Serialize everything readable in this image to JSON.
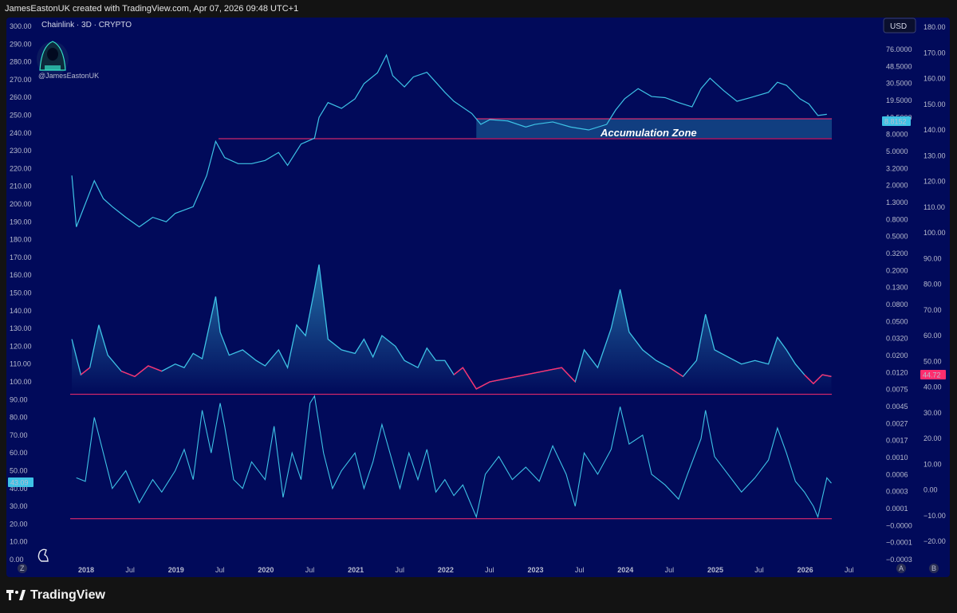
{
  "header": {
    "text": "JamesEastonUK created with TradingView.com, Apr 07, 2026 09:48 UTC+1"
  },
  "footer": {
    "brand": "TradingView"
  },
  "colors": {
    "background": "#010a5a",
    "line": "#3ec3e6",
    "negative": "#ff2d6e",
    "zone": "#1f6aa0"
  },
  "chart_data": {
    "type": "line",
    "title": "Chainlink · 3D · CRYPTO",
    "author": "@JamesEastonUK",
    "currency": "USD",
    "x_labels": [
      "2018",
      "Jul",
      "2019",
      "Jul",
      "2020",
      "Jul",
      "2021",
      "Jul",
      "2022",
      "Jul",
      "2023",
      "Jul",
      "2024",
      "Jul",
      "2025",
      "Jul",
      "2026",
      "Jul"
    ],
    "left_axis": [
      "300.00",
      "290.00",
      "280.00",
      "270.00",
      "260.00",
      "250.00",
      "240.00",
      "230.00",
      "220.00",
      "210.00",
      "200.00",
      "190.00",
      "180.00",
      "170.00",
      "160.00",
      "150.00",
      "140.00",
      "130.00",
      "120.00",
      "110.00",
      "100.00",
      "90.00",
      "80.00",
      "70.00",
      "60.00",
      "50.00",
      "40.00",
      "30.00",
      "20.00",
      "10.00",
      "0.00"
    ],
    "log_axis": [
      "76.0000",
      "48.5000",
      "30.5000",
      "19.5000",
      "12.5000",
      "8.0000",
      "5.0000",
      "3.2000",
      "2.0000",
      "1.3000",
      "0.8000",
      "0.5000",
      "0.3200",
      "0.2000",
      "0.1300",
      "0.0800",
      "0.0500",
      "0.0320",
      "0.0200",
      "0.0120",
      "0.0075",
      "0.0045",
      "0.0027",
      "0.0017",
      "0.0010",
      "0.0006",
      "0.0003",
      "0.0001",
      "−0.0000",
      "−0.0001",
      "−0.0003"
    ],
    "right_axis": [
      "180.00",
      "170.00",
      "160.00",
      "150.00",
      "140.00",
      "130.00",
      "120.00",
      "110.00",
      "100.00",
      "90.00",
      "80.00",
      "70.00",
      "60.00",
      "50.00",
      "40.00",
      "30.00",
      "20.00",
      "10.00",
      "0.00",
      "−10.00",
      "−20.00"
    ],
    "price_label": "8.8152",
    "oscillator_label": "44.72",
    "lower_label": "43.09",
    "zone_label": "Accumulation Zone",
    "axis_corner_labels": [
      "Z",
      "A",
      "B"
    ],
    "price_series": {
      "name": "Chainlink price",
      "points": [
        [
          2017.85,
          1.4
        ],
        [
          2017.9,
          0.3
        ],
        [
          2018.0,
          0.6
        ],
        [
          2018.1,
          1.2
        ],
        [
          2018.2,
          0.7
        ],
        [
          2018.3,
          0.55
        ],
        [
          2018.45,
          0.4
        ],
        [
          2018.6,
          0.3
        ],
        [
          2018.75,
          0.4
        ],
        [
          2018.9,
          0.35
        ],
        [
          2019.0,
          0.45
        ],
        [
          2019.2,
          0.55
        ],
        [
          2019.35,
          1.4
        ],
        [
          2019.45,
          3.9
        ],
        [
          2019.55,
          2.4
        ],
        [
          2019.7,
          2.0
        ],
        [
          2019.85,
          2.0
        ],
        [
          2020.0,
          2.2
        ],
        [
          2020.15,
          2.8
        ],
        [
          2020.25,
          1.9
        ],
        [
          2020.4,
          3.6
        ],
        [
          2020.55,
          4.3
        ],
        [
          2020.6,
          8.0
        ],
        [
          2020.7,
          12.5
        ],
        [
          2020.85,
          10.5
        ],
        [
          2021.0,
          14.0
        ],
        [
          2021.1,
          22.0
        ],
        [
          2021.25,
          30.5
        ],
        [
          2021.35,
          52.0
        ],
        [
          2021.42,
          28.0
        ],
        [
          2021.55,
          20.0
        ],
        [
          2021.65,
          27.0
        ],
        [
          2021.8,
          31.0
        ],
        [
          2021.9,
          23.0
        ],
        [
          2022.0,
          17.0
        ],
        [
          2022.1,
          13.0
        ],
        [
          2022.3,
          9.0
        ],
        [
          2022.4,
          6.5
        ],
        [
          2022.5,
          7.5
        ],
        [
          2022.7,
          7.2
        ],
        [
          2022.9,
          6.0
        ],
        [
          2023.0,
          6.5
        ],
        [
          2023.2,
          7.0
        ],
        [
          2023.4,
          6.0
        ],
        [
          2023.6,
          5.5
        ],
        [
          2023.8,
          6.5
        ],
        [
          2023.9,
          10.0
        ],
        [
          2024.0,
          14.0
        ],
        [
          2024.15,
          19.0
        ],
        [
          2024.3,
          15.0
        ],
        [
          2024.45,
          14.5
        ],
        [
          2024.6,
          12.5
        ],
        [
          2024.75,
          11.0
        ],
        [
          2024.85,
          19.0
        ],
        [
          2024.95,
          26.0
        ],
        [
          2025.1,
          18.0
        ],
        [
          2025.25,
          13.0
        ],
        [
          2025.4,
          14.5
        ],
        [
          2025.6,
          17.0
        ],
        [
          2025.7,
          23.0
        ],
        [
          2025.8,
          21.0
        ],
        [
          2025.95,
          14.0
        ],
        [
          2026.05,
          12.0
        ],
        [
          2026.15,
          8.5
        ],
        [
          2026.25,
          8.8
        ]
      ]
    },
    "oscillator_series": {
      "name": "Upper oscillator",
      "points": [
        [
          2017.85,
          124
        ],
        [
          2017.95,
          104
        ],
        [
          2018.05,
          108
        ],
        [
          2018.15,
          132
        ],
        [
          2018.25,
          115
        ],
        [
          2018.4,
          106
        ],
        [
          2018.55,
          103
        ],
        [
          2018.7,
          109
        ],
        [
          2018.85,
          106
        ],
        [
          2019.0,
          110
        ],
        [
          2019.1,
          108
        ],
        [
          2019.2,
          116
        ],
        [
          2019.3,
          113
        ],
        [
          2019.45,
          148
        ],
        [
          2019.5,
          128
        ],
        [
          2019.6,
          115
        ],
        [
          2019.75,
          118
        ],
        [
          2019.9,
          112
        ],
        [
          2020.0,
          109
        ],
        [
          2020.15,
          118
        ],
        [
          2020.25,
          108
        ],
        [
          2020.35,
          132
        ],
        [
          2020.45,
          126
        ],
        [
          2020.55,
          152
        ],
        [
          2020.6,
          166
        ],
        [
          2020.7,
          124
        ],
        [
          2020.85,
          118
        ],
        [
          2021.0,
          116
        ],
        [
          2021.1,
          124
        ],
        [
          2021.2,
          114
        ],
        [
          2021.3,
          126
        ],
        [
          2021.45,
          120
        ],
        [
          2021.55,
          112
        ],
        [
          2021.7,
          108
        ],
        [
          2021.8,
          119
        ],
        [
          2021.9,
          112
        ],
        [
          2022.0,
          112
        ],
        [
          2022.1,
          104
        ],
        [
          2022.2,
          108
        ],
        [
          2022.35,
          96
        ],
        [
          2022.5,
          100
        ],
        [
          2022.7,
          102
        ],
        [
          2022.9,
          104
        ],
        [
          2023.1,
          106
        ],
        [
          2023.3,
          108
        ],
        [
          2023.45,
          100
        ],
        [
          2023.55,
          118
        ],
        [
          2023.7,
          108
        ],
        [
          2023.85,
          130
        ],
        [
          2023.95,
          152
        ],
        [
          2024.05,
          128
        ],
        [
          2024.2,
          118
        ],
        [
          2024.35,
          112
        ],
        [
          2024.5,
          108
        ],
        [
          2024.65,
          103
        ],
        [
          2024.8,
          112
        ],
        [
          2024.9,
          138
        ],
        [
          2025.0,
          118
        ],
        [
          2025.15,
          114
        ],
        [
          2025.3,
          110
        ],
        [
          2025.45,
          112
        ],
        [
          2025.6,
          110
        ],
        [
          2025.7,
          125
        ],
        [
          2025.8,
          118
        ],
        [
          2025.9,
          110
        ],
        [
          2026.0,
          104
        ],
        [
          2026.1,
          99
        ],
        [
          2026.2,
          104
        ],
        [
          2026.3,
          103
        ]
      ]
    },
    "lower_series": {
      "name": "Lower oscillator",
      "points": [
        [
          2017.9,
          46
        ],
        [
          2018.0,
          44
        ],
        [
          2018.1,
          80
        ],
        [
          2018.2,
          60
        ],
        [
          2018.3,
          40
        ],
        [
          2018.45,
          50
        ],
        [
          2018.6,
          32
        ],
        [
          2018.75,
          45
        ],
        [
          2018.85,
          38
        ],
        [
          2019.0,
          50
        ],
        [
          2019.1,
          62
        ],
        [
          2019.2,
          45
        ],
        [
          2019.3,
          84
        ],
        [
          2019.4,
          60
        ],
        [
          2019.5,
          88
        ],
        [
          2019.55,
          75
        ],
        [
          2019.65,
          45
        ],
        [
          2019.75,
          40
        ],
        [
          2019.85,
          55
        ],
        [
          2020.0,
          45
        ],
        [
          2020.1,
          75
        ],
        [
          2020.2,
          35
        ],
        [
          2020.3,
          60
        ],
        [
          2020.4,
          45
        ],
        [
          2020.5,
          88
        ],
        [
          2020.55,
          92
        ],
        [
          2020.65,
          60
        ],
        [
          2020.75,
          40
        ],
        [
          2020.85,
          50
        ],
        [
          2021.0,
          60
        ],
        [
          2021.1,
          40
        ],
        [
          2021.2,
          55
        ],
        [
          2021.3,
          76
        ],
        [
          2021.4,
          58
        ],
        [
          2021.5,
          40
        ],
        [
          2021.6,
          60
        ],
        [
          2021.7,
          45
        ],
        [
          2021.8,
          62
        ],
        [
          2021.9,
          38
        ],
        [
          2022.0,
          45
        ],
        [
          2022.1,
          36
        ],
        [
          2022.2,
          42
        ],
        [
          2022.35,
          24
        ],
        [
          2022.45,
          48
        ],
        [
          2022.6,
          58
        ],
        [
          2022.75,
          45
        ],
        [
          2022.9,
          52
        ],
        [
          2023.05,
          44
        ],
        [
          2023.2,
          64
        ],
        [
          2023.35,
          48
        ],
        [
          2023.45,
          30
        ],
        [
          2023.55,
          60
        ],
        [
          2023.7,
          48
        ],
        [
          2023.85,
          62
        ],
        [
          2023.95,
          86
        ],
        [
          2024.05,
          65
        ],
        [
          2024.2,
          70
        ],
        [
          2024.3,
          48
        ],
        [
          2024.45,
          42
        ],
        [
          2024.6,
          34
        ],
        [
          2024.7,
          48
        ],
        [
          2024.85,
          68
        ],
        [
          2024.9,
          84
        ],
        [
          2025.0,
          58
        ],
        [
          2025.15,
          48
        ],
        [
          2025.3,
          38
        ],
        [
          2025.45,
          46
        ],
        [
          2025.6,
          56
        ],
        [
          2025.7,
          74
        ],
        [
          2025.8,
          60
        ],
        [
          2025.9,
          44
        ],
        [
          2026.0,
          38
        ],
        [
          2026.1,
          30
        ],
        [
          2026.15,
          24
        ],
        [
          2026.25,
          46
        ],
        [
          2026.3,
          43
        ]
      ]
    }
  }
}
